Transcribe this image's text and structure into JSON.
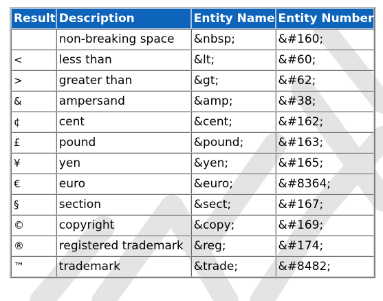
{
  "table": {
    "headers": [
      "Result",
      "Description",
      "Entity Name",
      "Entity Number"
    ],
    "rows": [
      {
        "result": " ",
        "description": "non-breaking space",
        "entity_name": "&nbsp;",
        "entity_number": "&#160;"
      },
      {
        "result": "<",
        "description": "less than",
        "entity_name": "&lt;",
        "entity_number": "&#60;"
      },
      {
        "result": ">",
        "description": "greater than",
        "entity_name": "&gt;",
        "entity_number": "&#62;"
      },
      {
        "result": "&",
        "description": "ampersand",
        "entity_name": "&amp;",
        "entity_number": "&#38;"
      },
      {
        "result": "¢",
        "description": "cent",
        "entity_name": "&cent;",
        "entity_number": "&#162;"
      },
      {
        "result": "£",
        "description": "pound",
        "entity_name": "&pound;",
        "entity_number": "&#163;"
      },
      {
        "result": "¥",
        "description": "yen",
        "entity_name": "&yen;",
        "entity_number": "&#165;"
      },
      {
        "result": "€",
        "description": "euro",
        "entity_name": "&euro;",
        "entity_number": "&#8364;"
      },
      {
        "result": "§",
        "description": "section",
        "entity_name": "&sect;",
        "entity_number": "&#167;"
      },
      {
        "result": "©",
        "description": "copyright",
        "entity_name": "&copy;",
        "entity_number": "&#169;"
      },
      {
        "result": "®",
        "description": "registered trademark",
        "entity_name": "&reg;",
        "entity_number": "&#174;"
      },
      {
        "result": "™",
        "description": "trademark",
        "entity_name": "&trade;",
        "entity_number": "&#8482;"
      }
    ]
  }
}
